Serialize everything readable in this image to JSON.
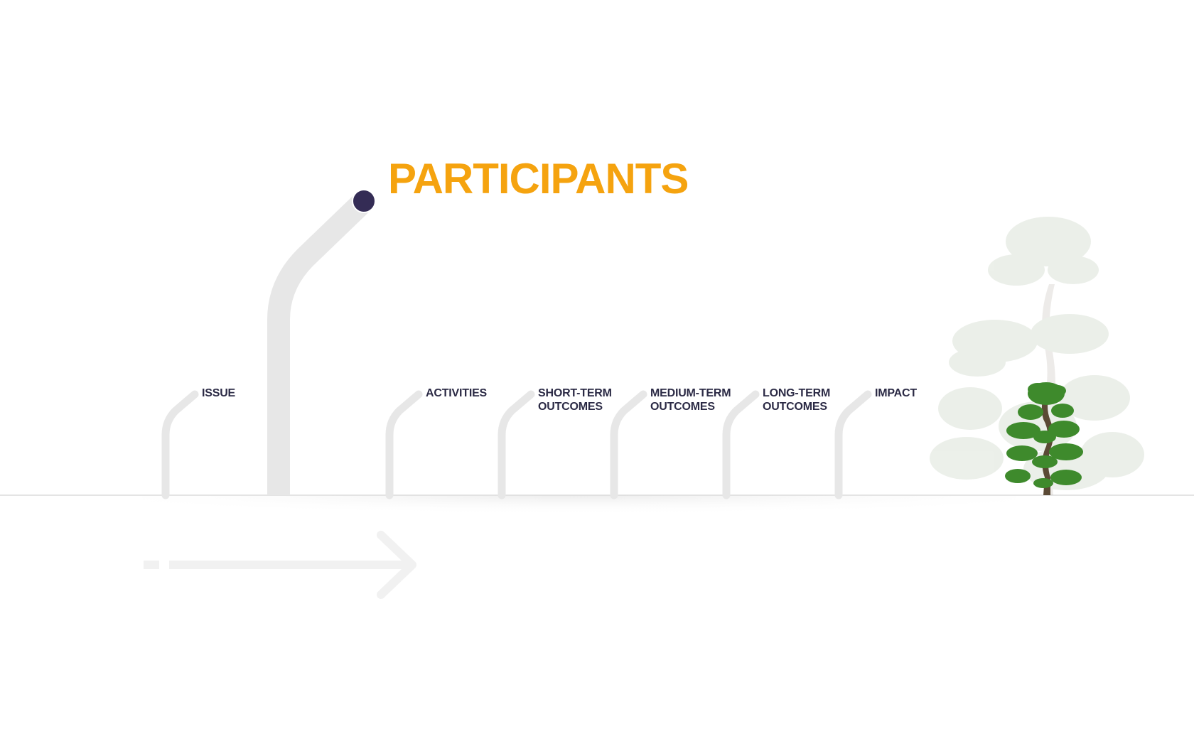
{
  "title": "PARTICIPANTS",
  "stages": [
    {
      "id": "issue",
      "lines": [
        "ISSUE"
      ]
    },
    {
      "id": "activities",
      "lines": [
        "ACTIVITIES"
      ]
    },
    {
      "id": "short-term-outcomes",
      "lines": [
        "SHORT-TERM",
        "OUTCOMES"
      ]
    },
    {
      "id": "medium-term-outcomes",
      "lines": [
        "MEDIUM-TERM",
        "OUTCOMES"
      ]
    },
    {
      "id": "long-term-outcomes",
      "lines": [
        "LONG-TERM",
        "OUTCOMES"
      ]
    },
    {
      "id": "impact",
      "lines": [
        "IMPACT"
      ]
    }
  ],
  "colors": {
    "title": "#f5a30f",
    "label": "#2b2a45",
    "stem": "#e7e7e7",
    "highlight_dot": "#342c55",
    "ground_line": "#dcdcdc",
    "arrow": "#f1f1f1",
    "tree_foliage": "#3e8a2c",
    "tree_trunk": "#5b4a35"
  },
  "icons": {
    "highlight_marker": "circle-marker-icon",
    "progress_arrow": "arrow-right-icon",
    "tree": "bonsai-tree-icon"
  }
}
